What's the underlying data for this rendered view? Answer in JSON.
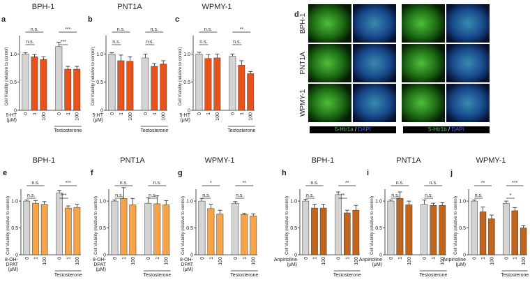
{
  "chart_data": [
    {
      "type": "bar",
      "panel": "a",
      "title": "BPH-1",
      "categories": [
        "0",
        "1",
        "100",
        "0",
        "1",
        "100"
      ],
      "values": [
        1.0,
        0.95,
        0.9,
        1.13,
        0.73,
        0.73
      ],
      "errors": [
        0.02,
        0.04,
        0.05,
        0.08,
        0.05,
        0.05
      ],
      "colors": [
        "#d4d4d4",
        "#e8531c",
        "#e8531c",
        "#d4d4d4",
        "#e8531c",
        "#e8531c"
      ],
      "ylim": [
        0,
        1.4
      ],
      "yticks": [
        0,
        0.5,
        {
          "value": 1,
          "label": "1.0"
        }
      ],
      "ylabel": "Cell Viability (relative to control)",
      "agonist_label": [
        "5-HT",
        "(μM)"
      ],
      "group_label": "Testosterone",
      "significance": [
        "n.s.",
        "n.s.",
        "***",
        "***"
      ]
    },
    {
      "type": "bar",
      "panel": "b",
      "title": "PNT1A",
      "categories": [
        "0",
        "1",
        "100",
        "0",
        "1",
        "100"
      ],
      "values": [
        1.0,
        0.88,
        0.87,
        0.93,
        0.78,
        0.82
      ],
      "errors": [
        0.02,
        0.1,
        0.08,
        0.07,
        0.05,
        0.06
      ],
      "colors": [
        "#d4d4d4",
        "#e8531c",
        "#e8531c",
        "#d4d4d4",
        "#e8531c",
        "#e8531c"
      ],
      "ylim": [
        0,
        1.4
      ],
      "yticks": [
        0,
        0.5,
        {
          "value": 1,
          "label": "1.0"
        }
      ],
      "ylabel": "Cell Viability (relative to control)",
      "agonist_label": [
        "5-HT",
        "(μM)"
      ],
      "group_label": "Testosterone",
      "significance": [
        "n.s.",
        "n.s.",
        "n.s.",
        "n.s."
      ]
    },
    {
      "type": "bar",
      "panel": "c",
      "title": "WPMY-1",
      "categories": [
        "0",
        "1",
        "100",
        "0",
        "1",
        "100"
      ],
      "values": [
        1.0,
        0.92,
        0.93,
        0.96,
        0.8,
        0.65
      ],
      "errors": [
        0.03,
        0.07,
        0.07,
        0.04,
        0.08,
        0.04
      ],
      "colors": [
        "#d4d4d4",
        "#e8531c",
        "#e8531c",
        "#d4d4d4",
        "#e8531c",
        "#e8531c"
      ],
      "ylim": [
        0,
        1.4
      ],
      "yticks": [
        0,
        0.5,
        {
          "value": 1,
          "label": "1.0"
        }
      ],
      "ylabel": "Cell Viability (relative to control)",
      "agonist_label": [
        "5-HT",
        "(μM)"
      ],
      "group_label": "Testosterone",
      "significance": [
        "n.s.",
        "n.s.",
        "**",
        "n.s."
      ]
    },
    {
      "type": "bar",
      "panel": "e",
      "title": "BPH-1",
      "categories": [
        "0",
        "1",
        "100",
        "0",
        "1",
        "100"
      ],
      "values": [
        1.0,
        0.96,
        0.94,
        1.15,
        0.87,
        0.88
      ],
      "errors": [
        0.02,
        0.05,
        0.05,
        0.05,
        0.04,
        0.06
      ],
      "colors": [
        "#d4d4d4",
        "#f5a44a",
        "#f5a44a",
        "#d4d4d4",
        "#f5a44a",
        "#f5a44a"
      ],
      "ylim": [
        0,
        1.3
      ],
      "yticks": [
        0,
        0.5,
        {
          "value": 1,
          "label": "1.0"
        }
      ],
      "ylabel": "Cell Viability (relative to control)",
      "agonist_label": [
        "8-OH-",
        "DPAT",
        "(μM)"
      ],
      "group_label": "Testosterone",
      "significance": [
        "n.s.",
        "n.s.",
        "***",
        "***"
      ]
    },
    {
      "type": "bar",
      "panel": "f",
      "title": "PNT1A",
      "categories": [
        "0",
        "1",
        "100",
        "0",
        "1",
        "100"
      ],
      "values": [
        1.0,
        1.05,
        0.93,
        0.96,
        0.95,
        0.93
      ],
      "errors": [
        0.02,
        0.2,
        0.12,
        0.1,
        0.15,
        0.08
      ],
      "colors": [
        "#d4d4d4",
        "#f5a44a",
        "#f5a44a",
        "#d4d4d4",
        "#f5a44a",
        "#f5a44a"
      ],
      "ylim": [
        0,
        1.3
      ],
      "yticks": [
        0,
        0.5,
        {
          "value": 1,
          "label": "1.0"
        }
      ],
      "ylabel": "Cell Viability (relative to control)",
      "agonist_label": [
        "8-OH-",
        "DPAT",
        "(μM)"
      ],
      "group_label": "Testosterone",
      "significance": [
        "n.s.",
        "n.s.",
        "n.s.",
        "n.s."
      ]
    },
    {
      "type": "bar",
      "panel": "g",
      "title": "WPMY-1",
      "categories": [
        "0",
        "1",
        "100",
        "0",
        "1",
        "100"
      ],
      "values": [
        1.0,
        0.86,
        0.76,
        0.96,
        0.75,
        0.72
      ],
      "errors": [
        0.05,
        0.08,
        0.07,
        0.03,
        0.02,
        0.04
      ],
      "colors": [
        "#d4d4d4",
        "#f5a44a",
        "#f5a44a",
        "#d4d4d4",
        "#f5a44a",
        "#f5a44a"
      ],
      "ylim": [
        0,
        1.3
      ],
      "yticks": [
        0,
        0.5,
        {
          "value": 1,
          "label": "1.0"
        }
      ],
      "ylabel": "Cell Viability (relative to control)",
      "agonist_label": [
        "8-OH-",
        "DPAT",
        "(μM)"
      ],
      "group_label": "Testosterone",
      "significance": [
        "*",
        "n.s.",
        "**",
        "n.s."
      ]
    },
    {
      "type": "bar",
      "panel": "h",
      "title": "BPH-1",
      "categories": [
        "0",
        "1",
        "100",
        "0",
        "1",
        "100"
      ],
      "values": [
        1.0,
        0.87,
        0.87,
        1.12,
        0.78,
        0.83
      ],
      "errors": [
        0.03,
        0.07,
        0.07,
        0.05,
        0.05,
        0.09
      ],
      "colors": [
        "#d4d4d4",
        "#c0651e",
        "#c0651e",
        "#d4d4d4",
        "#c0651e",
        "#c0651e"
      ],
      "ylim": [
        0,
        1.3
      ],
      "yticks": [
        0,
        0.5,
        {
          "value": 1,
          "label": "1.0"
        }
      ],
      "ylabel": "Cell Viability (relative to control)",
      "agonist_label": [
        "Anpirtoline",
        "(μM)"
      ],
      "group_label": "Testosterone",
      "significance": [
        "n.s.",
        "n.s.",
        "**",
        "**"
      ]
    },
    {
      "type": "bar",
      "panel": "i",
      "title": "PNT1A",
      "categories": [
        "0",
        "1",
        "100",
        "0",
        "1",
        "100"
      ],
      "values": [
        1.0,
        1.05,
        0.93,
        0.94,
        0.92,
        0.92
      ],
      "errors": [
        0.02,
        0.12,
        0.07,
        0.08,
        0.04,
        0.05
      ],
      "colors": [
        "#d4d4d4",
        "#c0651e",
        "#c0651e",
        "#d4d4d4",
        "#c0651e",
        "#c0651e"
      ],
      "ylim": [
        0,
        1.3
      ],
      "yticks": [
        0,
        0.5,
        {
          "value": 1,
          "label": "1.0"
        }
      ],
      "ylabel": "Cell Viability (relative to control)",
      "agonist_label": [
        "Anpirtoline",
        "(μM)"
      ],
      "group_label": "Testosterone",
      "significance": [
        "n.s.",
        "n.s.",
        "n.s.",
        "n.s."
      ]
    },
    {
      "type": "bar",
      "panel": "j",
      "title": "WPMY-1",
      "categories": [
        "0",
        "1",
        "100",
        "0",
        "1",
        "100"
      ],
      "values": [
        1.0,
        0.8,
        0.67,
        0.96,
        0.82,
        0.5
      ],
      "errors": [
        0.02,
        0.09,
        0.07,
        0.04,
        0.06,
        0.04
      ],
      "colors": [
        "#d4d4d4",
        "#c0651e",
        "#c0651e",
        "#d4d4d4",
        "#c0651e",
        "#c0651e"
      ],
      "ylim": [
        0,
        1.3
      ],
      "yticks": [
        0,
        0.5,
        {
          "value": 1,
          "label": "1.0"
        }
      ],
      "ylabel": "Cell Viability (relative to control)",
      "agonist_label": [
        "Anpirtoline",
        "(μM)"
      ],
      "group_label": "Testosterone",
      "significance": [
        "**",
        "n.s.",
        "***",
        "*"
      ]
    }
  ],
  "image_panel": {
    "panel": "d",
    "rows": [
      "BPH-1",
      "PNT1A",
      "WPMY-1"
    ],
    "captions": [
      [
        {
          "text": "5-Htr1a",
          "color": "#3fd23f"
        },
        {
          "text": " / ",
          "color": "#ffffff"
        },
        {
          "text": "DAPI",
          "color": "#4060ff"
        }
      ],
      [
        {
          "text": "5-Htr1b",
          "color": "#3fd23f"
        },
        {
          "text": " / ",
          "color": "#ffffff"
        },
        {
          "text": "DAPI",
          "color": "#4060ff"
        }
      ]
    ]
  }
}
